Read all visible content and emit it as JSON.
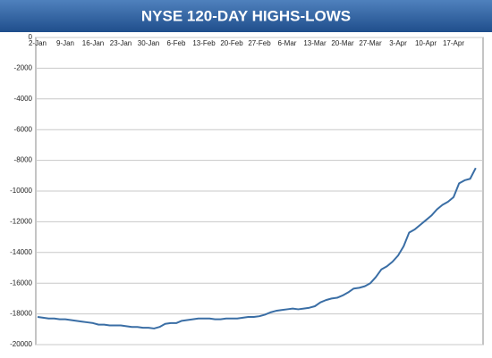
{
  "chart_data": {
    "type": "line",
    "title": "NYSE 120-DAY HIGHS-LOWS",
    "categories": [
      "2-Jan",
      null,
      null,
      null,
      null,
      "9-Jan",
      null,
      null,
      null,
      null,
      "16-Jan",
      null,
      null,
      null,
      null,
      "23-Jan",
      null,
      null,
      null,
      null,
      "30-Jan",
      null,
      null,
      null,
      null,
      "6-Feb",
      null,
      null,
      null,
      null,
      "13-Feb",
      null,
      null,
      null,
      null,
      "20-Feb",
      null,
      null,
      null,
      null,
      "27-Feb",
      null,
      null,
      null,
      null,
      "6-Mar",
      null,
      null,
      null,
      null,
      "13-Mar",
      null,
      null,
      null,
      null,
      "20-Mar",
      null,
      null,
      null,
      null,
      "27-Mar",
      null,
      null,
      null,
      null,
      "3-Apr",
      null,
      null,
      null,
      null,
      "10-Apr",
      null,
      null,
      null,
      null,
      "17-Apr",
      null,
      null,
      null,
      null
    ],
    "series": [
      {
        "name": "NYSE 120-Day Highs-Lows",
        "color": "#3a6ea5",
        "values": [
          -18200,
          -18250,
          -18300,
          -18300,
          -18350,
          -18350,
          -18400,
          -18450,
          -18500,
          -18550,
          -18600,
          -18700,
          -18700,
          -18750,
          -18750,
          -18750,
          -18800,
          -18850,
          -18850,
          -18900,
          -18900,
          -18950,
          -18850,
          -18650,
          -18600,
          -18600,
          -18450,
          -18400,
          -18350,
          -18300,
          -18300,
          -18300,
          -18350,
          -18350,
          -18300,
          -18300,
          -18300,
          -18250,
          -18200,
          -18200,
          -18150,
          -18050,
          -17900,
          -17800,
          -17750,
          -17700,
          -17650,
          -17700,
          -17650,
          -17600,
          -17500,
          -17250,
          -17100,
          -17000,
          -16950,
          -16800,
          -16600,
          -16350,
          -16300,
          -16200,
          -16000,
          -15600,
          -15100,
          -14900,
          -14600,
          -14200,
          -13600,
          -12700,
          -12500,
          -12200,
          -11900,
          -11600,
          -11200,
          -10900,
          -10700,
          -10400,
          -9500,
          -9300,
          -9200,
          -8500
        ]
      }
    ],
    "ylim": [
      -20000,
      0
    ],
    "yticks": [
      0,
      -2000,
      -4000,
      -6000,
      -8000,
      -10000,
      -12000,
      -14000,
      -16000,
      -18000,
      -20000
    ],
    "grid": true
  }
}
